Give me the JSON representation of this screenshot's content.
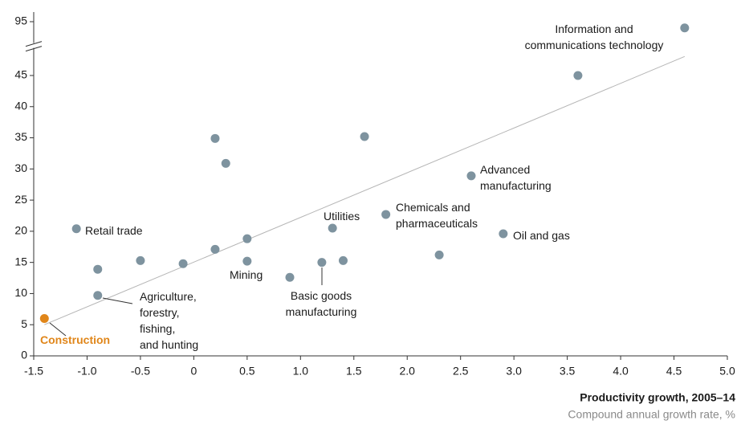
{
  "chart_data": {
    "type": "scatter",
    "x_title": "Productivity growth, 2005–14",
    "x_subtitle": "Compound annual growth rate, %",
    "x": [
      -1.4,
      -1.1,
      -0.9,
      -0.9,
      -0.5,
      -0.1,
      0.2,
      0.3,
      0.2,
      0.5,
      0.5,
      0.9,
      1.2,
      1.4,
      1.3,
      1.6,
      1.8,
      2.3,
      2.6,
      2.9,
      3.6,
      4.6
    ],
    "values": [
      6,
      20.4,
      13.9,
      9.7,
      15.3,
      14.8,
      34.9,
      30.9,
      17.1,
      18.8,
      15.2,
      12.6,
      15,
      15.3,
      20.5,
      35.2,
      22.7,
      16.2,
      28.9,
      19.6,
      45,
      94
    ],
    "labels": [
      "Construction",
      "Retail trade",
      null,
      "Agriculture,\nforestry,\nfishing,\nand hunting",
      null,
      null,
      null,
      null,
      null,
      null,
      "Mining",
      null,
      "Basic goods\nmanufacturing",
      null,
      "Utilities",
      null,
      "Chemicals and\npharmaceuticals",
      null,
      "Advanced\nmanufacturing",
      "Oil and gas",
      null,
      "Information and\ncommunications technology"
    ],
    "colors": [
      "#e0861a",
      "#7e939f",
      "#7e939f",
      "#7e939f",
      "#7e939f",
      "#7e939f",
      "#7e939f",
      "#7e939f",
      "#7e939f",
      "#7e939f",
      "#7e939f",
      "#7e939f",
      "#7e939f",
      "#7e939f",
      "#7e939f",
      "#7e939f",
      "#7e939f",
      "#7e939f",
      "#7e939f",
      "#7e939f",
      "#7e939f",
      "#7e939f"
    ],
    "trend_line": {
      "x": [
        -1.4,
        4.6
      ],
      "y": [
        5,
        48.6
      ]
    },
    "xlim": [
      -1.5,
      5.0
    ],
    "xticks": [
      -1.5,
      {
        "value": -1.0,
        "label": "-1.0"
      },
      -0.5,
      0,
      0.5,
      {
        "value": 1.0,
        "label": "1.0"
      },
      1.5,
      {
        "value": 2.0,
        "label": "2.0"
      },
      2.5,
      {
        "value": 3.0,
        "label": "3.0"
      },
      3.5,
      {
        "value": 4.0,
        "label": "4.0"
      },
      4.5,
      {
        "value": 5.0,
        "label": "5.0"
      }
    ],
    "ylim": [
      0,
      95
    ],
    "ybreak": [
      48,
      93
    ],
    "yticks": [
      0,
      5,
      10,
      15,
      20,
      25,
      30,
      35,
      40,
      45,
      95
    ]
  }
}
